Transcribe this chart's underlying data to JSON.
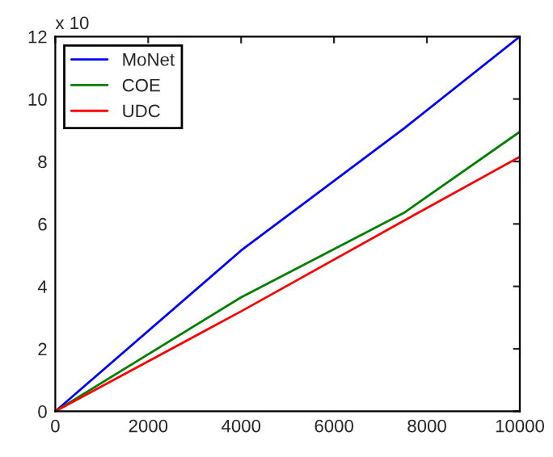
{
  "chart_data": {
    "type": "line",
    "x": [
      0,
      4000,
      7500,
      10000
    ],
    "series": [
      {
        "name": "MoNet",
        "color": "#0000ff",
        "values": [
          0,
          5.15,
          9.05,
          12
        ]
      },
      {
        "name": "COE",
        "color": "#008000",
        "values": [
          0,
          3.65,
          6.35,
          8.95
        ]
      },
      {
        "name": "UDC",
        "color": "#ff0000",
        "values": [
          0,
          3.2,
          6.1,
          8.15
        ]
      }
    ],
    "xlim": [
      0,
      10000
    ],
    "xticks": [
      0,
      2000,
      4000,
      6000,
      8000,
      10000
    ],
    "ylim": [
      0,
      12
    ],
    "yticks": [
      0,
      2,
      4,
      6,
      8,
      10,
      12
    ],
    "annotations": [
      "x 10"
    ],
    "legend": "top left",
    "grid": false,
    "marker": "none",
    "line_style": "solid"
  }
}
